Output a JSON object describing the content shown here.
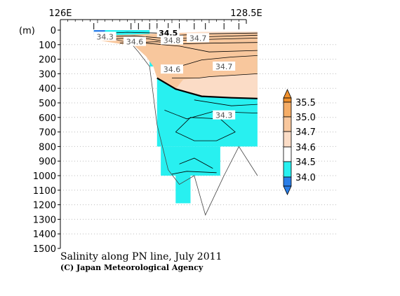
{
  "chart_data": {
    "type": "contour section",
    "title": "Salinity along PN line, July 2011",
    "credit": "(C) Japan Meteorological Agency",
    "x_axis": {
      "ticks": [
        "126E",
        "128.5E"
      ],
      "range": [
        126.0,
        128.5
      ]
    },
    "y_axis": {
      "unit_label": "(m)",
      "ticks": [
        "0",
        "100",
        "200",
        "300",
        "400",
        "500",
        "600",
        "700",
        "800",
        "900",
        "1000",
        "1100",
        "1200",
        "1300",
        "1400",
        "1500"
      ],
      "range": [
        0,
        1500
      ],
      "inverted": true,
      "grid": true
    },
    "colorbar": {
      "levels": [
        "35.5",
        "35.0",
        "34.7",
        "34.6",
        "34.5",
        "34.0"
      ],
      "colors": {
        "above_35_5": "#f0902c",
        "35_0_to_35_5": "#f5ad67",
        "34_7_to_35_0": "#f8c79d",
        "34_6_to_34_7": "#fbdcc6",
        "34_5_to_34_6": "#ffffff",
        "34_0_to_34_5": "#28f0f0",
        "below_34_0": "#2a7ee8"
      }
    },
    "stations": [
      {
        "lon": 126.45,
        "bottom_depth": 30
      },
      {
        "lon": 126.95,
        "bottom_depth": 90
      },
      {
        "lon": 127.05,
        "bottom_depth": 150
      },
      {
        "lon": 127.2,
        "bottom_depth": 250
      },
      {
        "lon": 127.3,
        "bottom_depth": 650
      },
      {
        "lon": 127.45,
        "bottom_depth": 960
      },
      {
        "lon": 127.6,
        "bottom_depth": 1060
      },
      {
        "lon": 127.8,
        "bottom_depth": 1000
      },
      {
        "lon": 127.95,
        "bottom_depth": 1270
      },
      {
        "lon": 128.2,
        "bottom_depth": 1000
      },
      {
        "lon": 128.4,
        "bottom_depth": 800
      },
      {
        "lon": 128.65,
        "bottom_depth": 1000
      }
    ],
    "contour_labels": [
      {
        "text": "34.5",
        "lon": 127.45,
        "depth": 20,
        "bold": true
      },
      {
        "text": "34.3",
        "lon": 126.6,
        "depth": 45
      },
      {
        "text": "34.6",
        "lon": 127.0,
        "depth": 80
      },
      {
        "text": "34.8",
        "lon": 127.5,
        "depth": 70
      },
      {
        "text": "34.7",
        "lon": 127.85,
        "depth": 55
      },
      {
        "text": "34.6",
        "lon": 127.5,
        "depth": 270
      },
      {
        "text": "34.7",
        "lon": 128.2,
        "depth": 250
      },
      {
        "text": "34.3",
        "lon": 128.2,
        "depth": 585
      }
    ]
  }
}
